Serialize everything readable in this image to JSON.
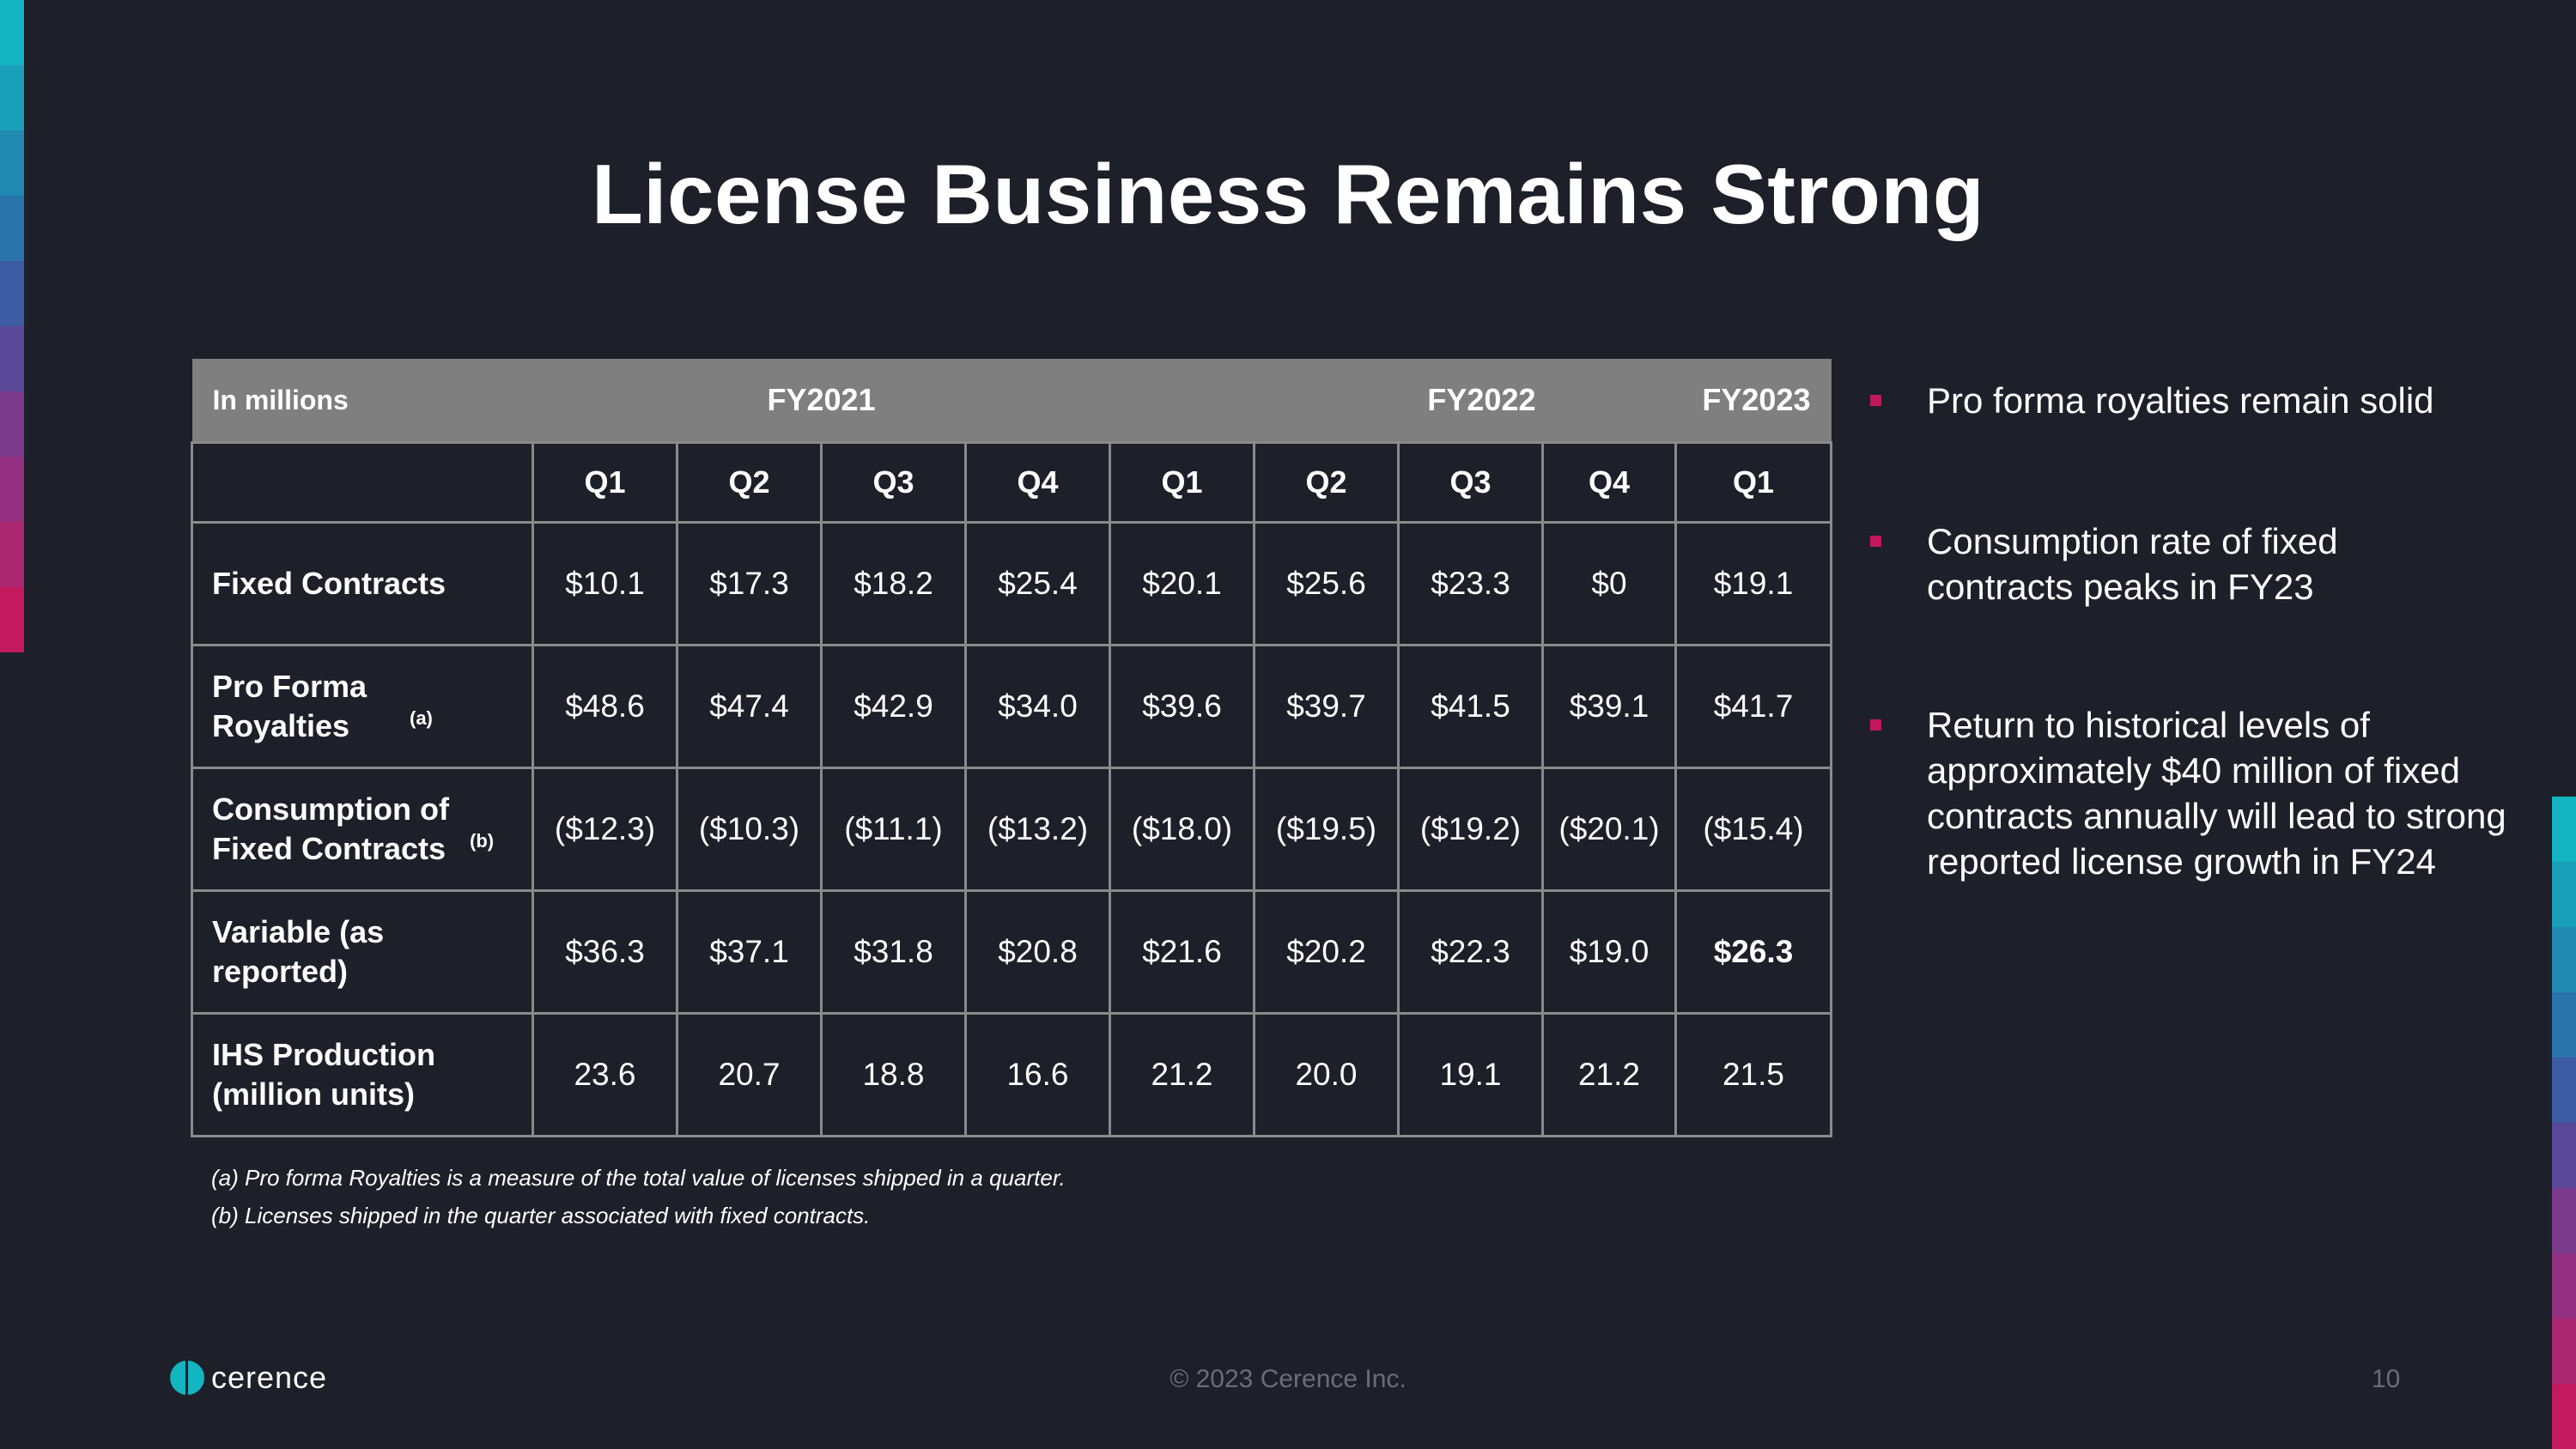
{
  "slide": {
    "title": "License Business Remains Strong",
    "page_number": "10",
    "copyright": "© 2023 Cerence Inc.",
    "logo_text": "cerence"
  },
  "table": {
    "header_label": "In millions",
    "fiscal_years": [
      "FY2021",
      "FY2022",
      "FY2023"
    ],
    "quarters": [
      "Q1",
      "Q2",
      "Q3",
      "Q4",
      "Q1",
      "Q2",
      "Q3",
      "Q4",
      "Q1"
    ],
    "rows": [
      {
        "label": "Fixed Contracts",
        "sup": "",
        "values": [
          "$10.1",
          "$17.3",
          "$18.2",
          "$25.4",
          "$20.1",
          "$25.6",
          "$23.3",
          "$0",
          "$19.1"
        ]
      },
      {
        "label": "Pro Forma Royalties",
        "sup": "(a)",
        "values": [
          "$48.6",
          "$47.4",
          "$42.9",
          "$34.0",
          "$39.6",
          "$39.7",
          "$41.5",
          "$39.1",
          "$41.7"
        ]
      },
      {
        "label": "Consumption of Fixed Contracts",
        "sup": "(b)",
        "values": [
          "($12.3)",
          "($10.3)",
          "($11.1)",
          "($13.2)",
          "($18.0)",
          "($19.5)",
          "($19.2)",
          "($20.1)",
          "($15.4)"
        ]
      },
      {
        "label": "Variable (as reported)",
        "sup": "",
        "values": [
          "$36.3",
          "$37.1",
          "$31.8",
          "$20.8",
          "$21.6",
          "$20.2",
          "$22.3",
          "$19.0",
          "$26.3"
        ]
      },
      {
        "label": "IHS Production (million units)",
        "sup": "",
        "values": [
          "23.6",
          "20.7",
          "18.8",
          "16.6",
          "21.2",
          "20.0",
          "19.1",
          "21.2",
          "21.5"
        ]
      }
    ]
  },
  "footnotes": [
    "(a) Pro forma Royalties is a measure of the total value of licenses shipped in a quarter.",
    "(b) Licenses shipped in the quarter associated with fixed contracts."
  ],
  "bullets": [
    "Pro forma royalties remain solid",
    "Consumption rate of fixed contracts peaks in FY23",
    "Return to historical levels of approximately $40 million of fixed contracts annually will lead to strong reported license growth in FY24"
  ],
  "colors": {
    "background": "#1d1f29",
    "table_header": "#7f7f7f",
    "bullet_accent": "#c2185b",
    "stripe": [
      "#12b5c0",
      "#1a9fb8",
      "#2189b2",
      "#2a72aa",
      "#3c5ba3",
      "#5a4898",
      "#7a3a8c",
      "#933080",
      "#ab2770",
      "#c21a5c"
    ]
  }
}
